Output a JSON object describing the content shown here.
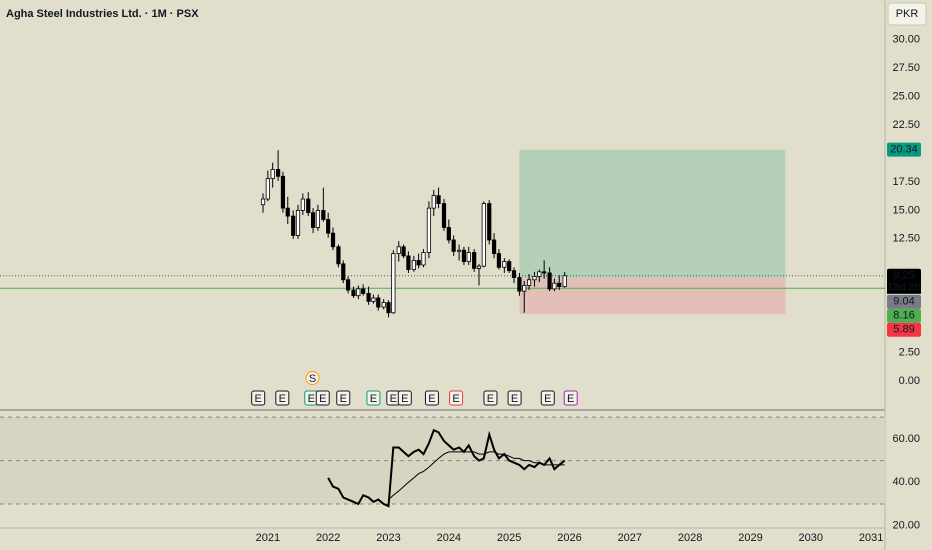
{
  "chart_data": [
    {
      "type": "candlestick",
      "title": "Agha Steel Industries Ltd. · 1M · PSX",
      "currency_button": "PKR",
      "up_color": "#ffffff",
      "down_color": "#000000",
      "outline_color": "#000000",
      "xlim": [
        2016.56,
        2031.23
      ],
      "xticks": [
        2021,
        2022,
        2023,
        2024,
        2025,
        2026,
        2027,
        2028,
        2029,
        2030,
        2031
      ],
      "ylim": [
        -2.55,
        33.5
      ],
      "yticks": [
        {
          "value": 30,
          "label": "30.00"
        },
        {
          "value": 27.5,
          "label": "27.50"
        },
        {
          "value": 25,
          "label": "25.00"
        },
        {
          "value": 22.5,
          "label": "22.50"
        },
        {
          "value": 17.5,
          "label": "17.50"
        },
        {
          "value": 15,
          "label": "15.00"
        },
        {
          "value": 12.5,
          "label": "12.50"
        },
        {
          "value": 2.5,
          "label": "2.50"
        },
        {
          "value": 0,
          "label": "0.00"
        }
      ],
      "x": [
        2020.92,
        2021.0,
        2021.08,
        2021.17,
        2021.25,
        2021.33,
        2021.42,
        2021.5,
        2021.58,
        2021.67,
        2021.75,
        2021.83,
        2021.92,
        2022.0,
        2022.08,
        2022.17,
        2022.25,
        2022.33,
        2022.42,
        2022.5,
        2022.58,
        2022.67,
        2022.75,
        2022.83,
        2022.92,
        2023.0,
        2023.08,
        2023.17,
        2023.25,
        2023.33,
        2023.42,
        2023.5,
        2023.58,
        2023.67,
        2023.75,
        2023.83,
        2023.92,
        2024.0,
        2024.08,
        2024.17,
        2024.25,
        2024.33,
        2024.42,
        2024.5,
        2024.58,
        2024.67,
        2024.75,
        2024.83,
        2024.92,
        2025.0,
        2025.08,
        2025.17,
        2025.25,
        2025.33,
        2025.42,
        2025.5,
        2025.58,
        2025.67,
        2025.75,
        2025.83,
        2025.92
      ],
      "open": [
        15.5,
        16.0,
        17.8,
        18.6,
        18.0,
        15.2,
        14.5,
        12.8,
        15.0,
        16.0,
        14.8,
        13.5,
        15.0,
        14.2,
        13.0,
        11.8,
        10.3,
        8.9,
        8.0,
        7.5,
        8.1,
        7.7,
        7.0,
        7.3,
        6.5,
        6.9,
        6.0,
        11.2,
        11.8,
        11.0,
        9.8,
        10.6,
        10.2,
        11.3,
        15.2,
        16.3,
        15.6,
        13.5,
        12.4,
        11.4,
        11.5,
        10.5,
        11.3,
        9.9,
        10.1,
        15.6,
        12.4,
        11.2,
        10.0,
        10.5,
        9.7,
        9.1,
        7.9,
        8.4,
        8.9,
        9.2,
        9.6,
        9.5,
        8.1,
        8.6,
        8.3
      ],
      "high": [
        16.5,
        18.5,
        19.2,
        20.3,
        18.4,
        16.2,
        15.0,
        15.5,
        16.5,
        16.6,
        15.2,
        15.5,
        17.0,
        14.8,
        13.5,
        12.0,
        10.6,
        9.2,
        8.3,
        8.4,
        8.5,
        8.3,
        7.6,
        7.6,
        7.2,
        7.1,
        11.5,
        12.3,
        12.0,
        11.4,
        11.0,
        11.2,
        11.6,
        15.8,
        16.8,
        17.0,
        16.0,
        14.2,
        12.8,
        12.0,
        11.8,
        11.8,
        11.6,
        10.3,
        15.8,
        15.9,
        13.0,
        11.6,
        10.8,
        10.7,
        10.0,
        9.5,
        8.8,
        9.4,
        9.6,
        9.8,
        10.6,
        10.0,
        9.0,
        9.3,
        9.6
      ],
      "low": [
        14.8,
        15.8,
        17.0,
        17.6,
        14.8,
        13.8,
        12.5,
        12.5,
        14.6,
        14.5,
        13.0,
        13.2,
        14.0,
        12.6,
        11.5,
        10.0,
        8.6,
        7.7,
        7.3,
        7.2,
        7.5,
        6.7,
        6.8,
        6.2,
        6.3,
        5.6,
        5.9,
        10.5,
        10.8,
        9.5,
        9.6,
        9.9,
        10.0,
        10.8,
        14.5,
        15.2,
        13.2,
        12.1,
        11.0,
        10.6,
        10.2,
        10.2,
        9.6,
        8.4,
        10.0,
        12.0,
        10.8,
        9.8,
        9.5,
        9.5,
        8.6,
        7.5,
        6.0,
        8.0,
        8.3,
        8.7,
        9.0,
        7.9,
        7.9,
        8.0,
        8.2
      ],
      "close": [
        16.0,
        17.8,
        18.6,
        18.0,
        15.2,
        14.5,
        12.8,
        15.0,
        16.0,
        14.8,
        13.5,
        15.0,
        14.2,
        13.0,
        11.8,
        10.3,
        8.9,
        8.0,
        7.5,
        8.1,
        7.7,
        7.0,
        7.3,
        6.5,
        6.9,
        6.0,
        11.2,
        11.8,
        11.0,
        9.8,
        10.6,
        10.2,
        11.3,
        15.2,
        16.3,
        15.6,
        13.5,
        12.4,
        11.4,
        11.5,
        10.5,
        11.3,
        9.9,
        10.1,
        15.6,
        12.4,
        11.2,
        10.0,
        10.5,
        9.7,
        9.1,
        7.9,
        8.4,
        8.9,
        9.2,
        9.6,
        9.5,
        8.1,
        8.6,
        8.3,
        9.25
      ],
      "position": {
        "x": [
          2025.17,
          2029.58
        ],
        "target": 20.34,
        "entry": 9.04,
        "stop": 5.89,
        "profit_color": "#b5d0b9",
        "loss_color": "#e2c0b8"
      },
      "level_line": {
        "value": 8.16,
        "color": "#4caf50"
      },
      "price_line": {
        "value": 9.25
      },
      "price_tags": [
        {
          "value": 20.34,
          "label": "20.34",
          "color": "#089981"
        },
        {
          "value": 9.25,
          "label": "9.25",
          "color": "#000000",
          "note": "18d 3h"
        },
        {
          "value": 9.04,
          "label": "9.04",
          "color": "#787b86"
        },
        {
          "value": 8.16,
          "label": "8.16",
          "color": "#4caf50"
        },
        {
          "value": 5.89,
          "label": "5.89",
          "color": "#f23645"
        }
      ],
      "events": [
        {
          "x": 2020.84,
          "label": "E",
          "color": "#131722"
        },
        {
          "x": 2021.24,
          "label": "E",
          "color": "#131722"
        },
        {
          "x": 2021.72,
          "label": "E",
          "color": "#089981"
        },
        {
          "x": 2021.74,
          "label": "S",
          "color": "#ff9800"
        },
        {
          "x": 2021.91,
          "label": "E",
          "color": "#131722"
        },
        {
          "x": 2022.25,
          "label": "E",
          "color": "#131722"
        },
        {
          "x": 2022.75,
          "label": "E",
          "color": "#089981"
        },
        {
          "x": 2023.08,
          "label": "E",
          "color": "#131722"
        },
        {
          "x": 2023.27,
          "label": "E",
          "color": "#131722"
        },
        {
          "x": 2023.72,
          "label": "E",
          "color": "#131722"
        },
        {
          "x": 2024.12,
          "label": "E",
          "color": "#f23645"
        },
        {
          "x": 2024.69,
          "label": "E",
          "color": "#131722"
        },
        {
          "x": 2025.09,
          "label": "E",
          "color": "#131722"
        },
        {
          "x": 2025.64,
          "label": "E",
          "color": "#131722"
        },
        {
          "x": 2026.02,
          "label": "E",
          "color": "#9c27b0"
        }
      ]
    },
    {
      "type": "line",
      "xlim": [
        2016.56,
        2031.23
      ],
      "ylim": [
        18,
        71
      ],
      "yticks": [
        {
          "value": 60,
          "label": "60.00"
        },
        {
          "value": 40,
          "label": "40.00"
        },
        {
          "value": 20,
          "label": "20.00"
        }
      ],
      "bands": [
        70,
        50,
        30
      ],
      "x": [
        2022.0,
        2022.08,
        2022.17,
        2022.25,
        2022.33,
        2022.42,
        2022.5,
        2022.58,
        2022.67,
        2022.75,
        2022.83,
        2022.92,
        2023.0,
        2023.08,
        2023.17,
        2023.25,
        2023.33,
        2023.42,
        2023.5,
        2023.58,
        2023.67,
        2023.75,
        2023.83,
        2023.92,
        2024.0,
        2024.08,
        2024.17,
        2024.25,
        2024.33,
        2024.42,
        2024.5,
        2024.58,
        2024.67,
        2024.75,
        2024.83,
        2024.92,
        2025.0,
        2025.08,
        2025.17,
        2025.25,
        2025.33,
        2025.42,
        2025.5,
        2025.58,
        2025.67,
        2025.75,
        2025.83,
        2025.92
      ],
      "series": [
        {
          "color": "#000000",
          "width": 2,
          "values": [
            42,
            38,
            37,
            33,
            32,
            31,
            30,
            34,
            33,
            31,
            32,
            30,
            29,
            56,
            56,
            54,
            52,
            54,
            55,
            53,
            58,
            64,
            63,
            59,
            57,
            55,
            56,
            54,
            57,
            52,
            50,
            51,
            62,
            55,
            51,
            53,
            50,
            49,
            48,
            46,
            48,
            47,
            49,
            48,
            51,
            46,
            48,
            50
          ]
        },
        {
          "color": "#000000",
          "width": 1,
          "values": [
            null,
            null,
            null,
            null,
            null,
            null,
            null,
            null,
            null,
            null,
            null,
            null,
            32,
            34,
            36,
            38,
            40,
            42,
            44,
            45,
            47,
            49,
            51,
            53,
            54,
            54,
            54,
            54,
            54,
            54,
            53,
            53,
            54,
            54,
            53,
            53,
            52,
            51,
            51,
            50,
            50,
            49,
            49,
            48,
            48,
            48,
            48,
            48
          ]
        }
      ]
    }
  ]
}
